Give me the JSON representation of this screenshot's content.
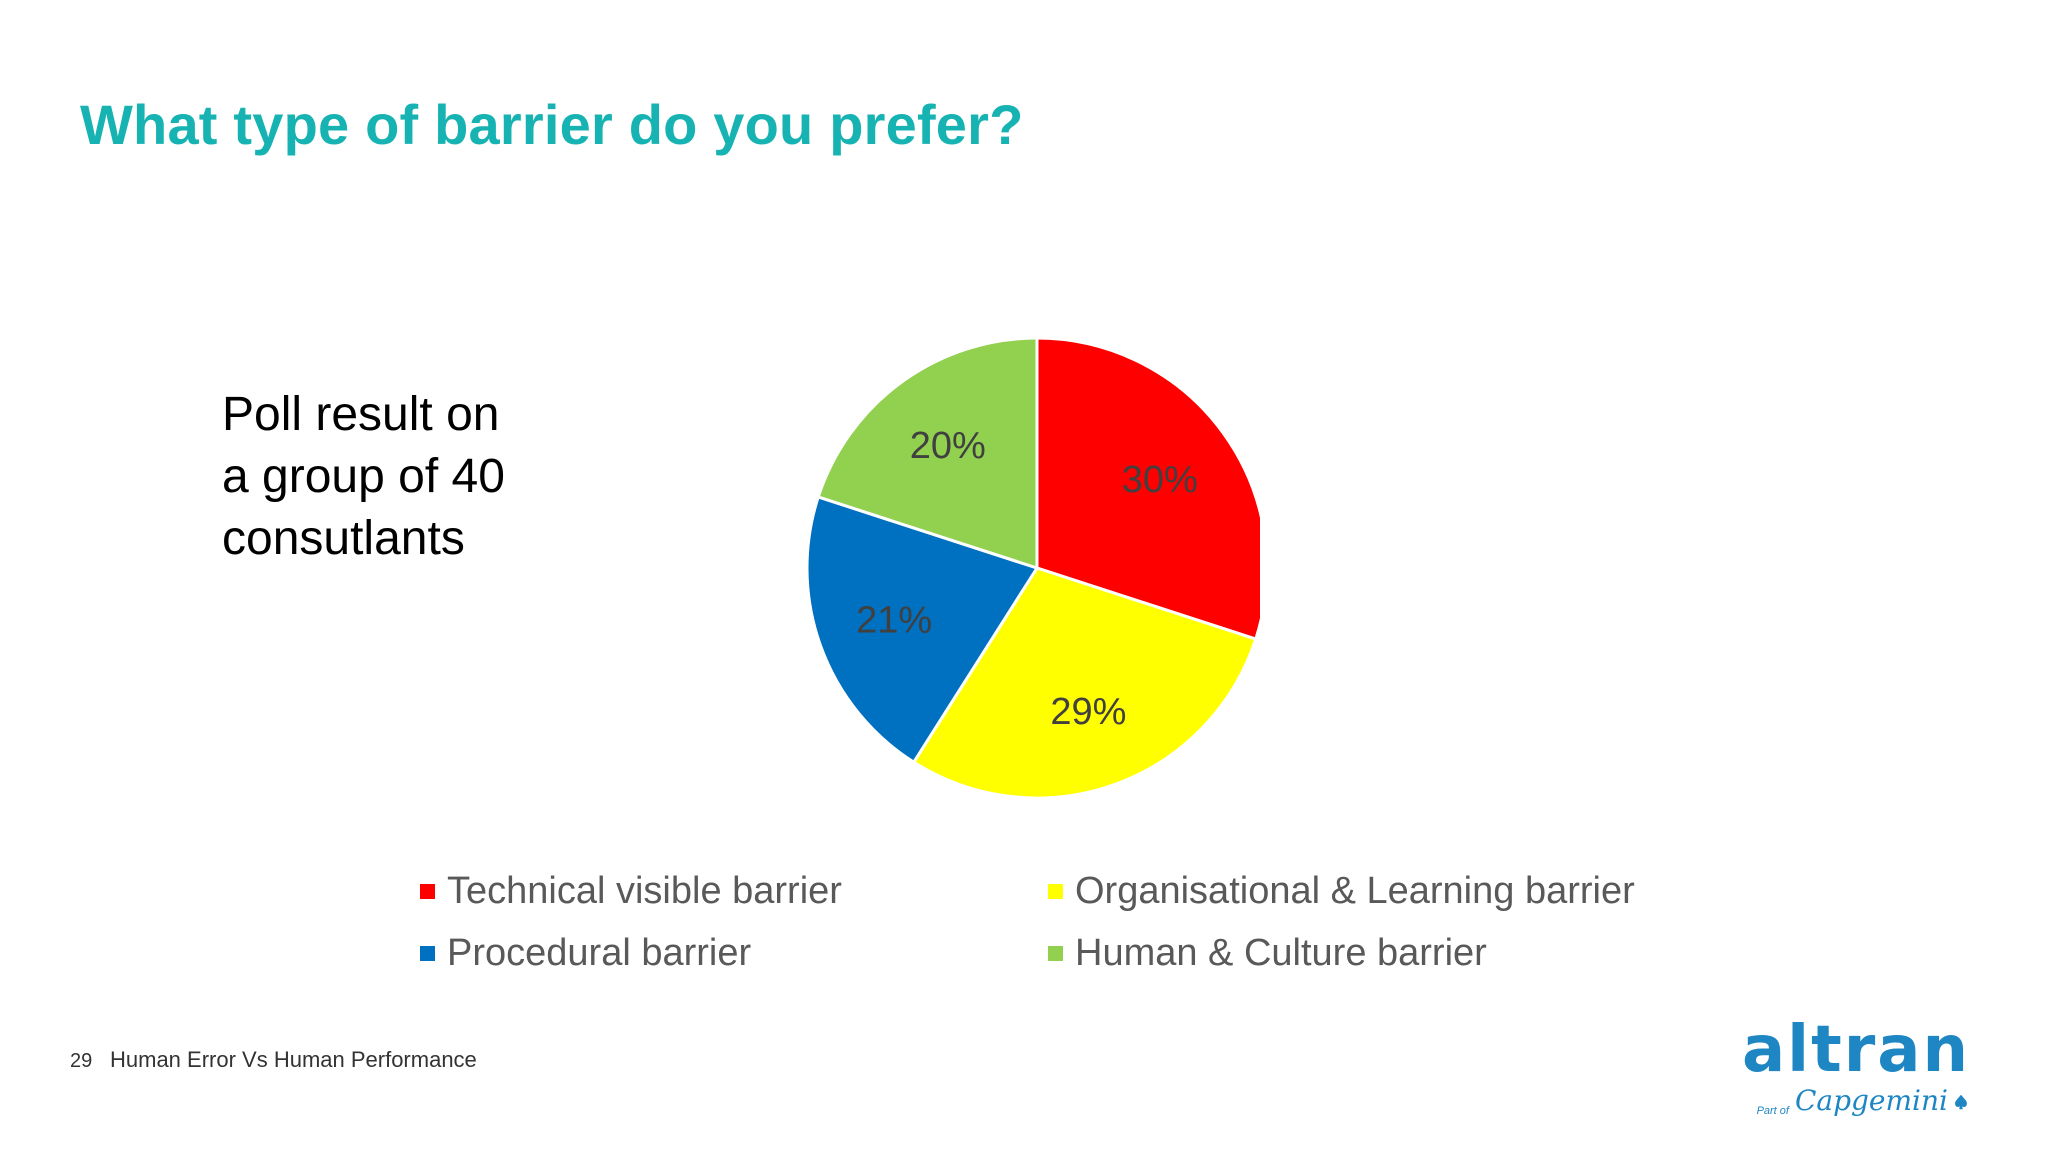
{
  "slide": {
    "title": "What type of barrier do you prefer?",
    "poll_lines": [
      "Poll result on",
      "a group of 40",
      "consutlants"
    ],
    "page_number": "29",
    "footer_text": "Human Error Vs Human Performance",
    "logo": {
      "main": "altran",
      "part_of": "Part of",
      "sub": "Capgemini"
    }
  },
  "chart_data": {
    "type": "pie",
    "title": "",
    "legend_placement": "bottom",
    "slices": [
      {
        "name": "Technical visible barrier",
        "value": 30,
        "label": "30%",
        "color": "#ff0000"
      },
      {
        "name": "Organisational & Learning barrier",
        "value": 29,
        "label": "29%",
        "color": "#ffff00"
      },
      {
        "name": "Procedural barrier",
        "value": 21,
        "label": "21%",
        "color": "#0070c0"
      },
      {
        "name": "Human & Culture barrier",
        "value": 20,
        "label": "20%",
        "color": "#92d050"
      }
    ],
    "legend_order": [
      0,
      1,
      2,
      3
    ]
  }
}
